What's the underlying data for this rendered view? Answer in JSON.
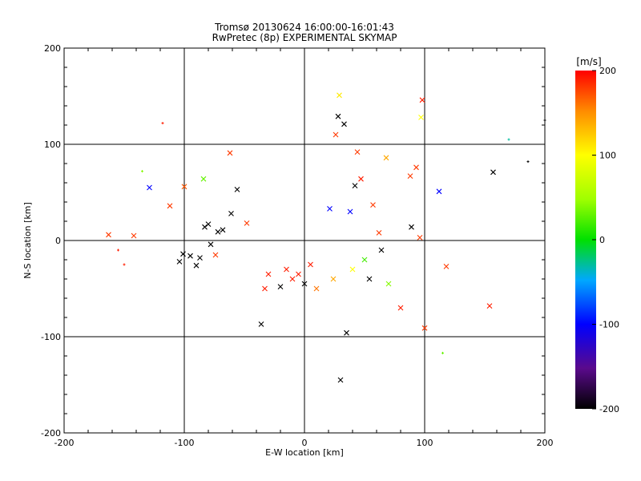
{
  "chart_data": {
    "type": "scatter",
    "title": "Tromsø 20130624 16:00:00-16:01:43",
    "subtitle": "RwPretec (8p) EXPERIMENTAL SKYMAP",
    "xlabel": "E-W location [km]",
    "ylabel": "N-S location [km]",
    "xlim": [
      -200,
      200
    ],
    "ylim": [
      -200,
      200
    ],
    "xticks": [
      "-200",
      "-100",
      "0",
      "100",
      "200"
    ],
    "yticks": [
      "-200",
      "-100",
      "0",
      "100",
      "200"
    ],
    "grid_lines": [
      -100,
      0,
      100
    ],
    "colorbar": {
      "label": "[m/s]",
      "min": -200,
      "max": 200,
      "ticks": [
        "200",
        "100",
        "0",
        "-100",
        "-200"
      ]
    },
    "markers": [
      {
        "x": -163,
        "y": 6,
        "v": 180,
        "m": "x"
      },
      {
        "x": -142,
        "y": 5,
        "v": 180,
        "m": "x"
      },
      {
        "x": -129,
        "y": 55,
        "v": -100,
        "m": "x"
      },
      {
        "x": -118,
        "y": 122,
        "v": 190,
        "m": "+"
      },
      {
        "x": -112,
        "y": 36,
        "v": 180,
        "m": "x"
      },
      {
        "x": -100,
        "y": 56,
        "v": 170,
        "m": "x"
      },
      {
        "x": -104,
        "y": -22,
        "v": -200,
        "m": "x"
      },
      {
        "x": -101,
        "y": -14,
        "v": -200,
        "m": "x"
      },
      {
        "x": -95,
        "y": -16,
        "v": -200,
        "m": "x"
      },
      {
        "x": -90,
        "y": -26,
        "v": -200,
        "m": "x"
      },
      {
        "x": -87,
        "y": -18,
        "v": -200,
        "m": "x"
      },
      {
        "x": -84,
        "y": 64,
        "v": 30,
        "m": "x"
      },
      {
        "x": -83,
        "y": 14,
        "v": -200,
        "m": "x"
      },
      {
        "x": -80,
        "y": 17,
        "v": -200,
        "m": "x"
      },
      {
        "x": -78,
        "y": -4,
        "v": -200,
        "m": "x"
      },
      {
        "x": -74,
        "y": -15,
        "v": 180,
        "m": "x"
      },
      {
        "x": -72,
        "y": 9,
        "v": -200,
        "m": "x"
      },
      {
        "x": -68,
        "y": 11,
        "v": -200,
        "m": "x"
      },
      {
        "x": -62,
        "y": 91,
        "v": 180,
        "m": "x"
      },
      {
        "x": -61,
        "y": 28,
        "v": -200,
        "m": "x"
      },
      {
        "x": -56,
        "y": 53,
        "v": -200,
        "m": "x"
      },
      {
        "x": -48,
        "y": 18,
        "v": 180,
        "m": "x"
      },
      {
        "x": -36,
        "y": -87,
        "v": -200,
        "m": "x"
      },
      {
        "x": -33,
        "y": -50,
        "v": 190,
        "m": "x"
      },
      {
        "x": -30,
        "y": -35,
        "v": 190,
        "m": "x"
      },
      {
        "x": -20,
        "y": -48,
        "v": -200,
        "m": "x"
      },
      {
        "x": -15,
        "y": -30,
        "v": 190,
        "m": "x"
      },
      {
        "x": -10,
        "y": -40,
        "v": 190,
        "m": "x"
      },
      {
        "x": -5,
        "y": -35,
        "v": 190,
        "m": "x"
      },
      {
        "x": 0,
        "y": -45,
        "v": -200,
        "m": "x"
      },
      {
        "x": 5,
        "y": -25,
        "v": 190,
        "m": "x"
      },
      {
        "x": 10,
        "y": -50,
        "v": 160,
        "m": "x"
      },
      {
        "x": 21,
        "y": 33,
        "v": -100,
        "m": "x"
      },
      {
        "x": 24,
        "y": -40,
        "v": 140,
        "m": "x"
      },
      {
        "x": 26,
        "y": 110,
        "v": 180,
        "m": "x"
      },
      {
        "x": 28,
        "y": 129,
        "v": -200,
        "m": "x"
      },
      {
        "x": 29,
        "y": 151,
        "v": 110,
        "m": "x"
      },
      {
        "x": 30,
        "y": -145,
        "v": -200,
        "m": "x"
      },
      {
        "x": 33,
        "y": 121,
        "v": -200,
        "m": "x"
      },
      {
        "x": 35,
        "y": -96,
        "v": -200,
        "m": "x"
      },
      {
        "x": 38,
        "y": 30,
        "v": -100,
        "m": "x"
      },
      {
        "x": 40,
        "y": -30,
        "v": 100,
        "m": "x"
      },
      {
        "x": 42,
        "y": 57,
        "v": -200,
        "m": "x"
      },
      {
        "x": 44,
        "y": 92,
        "v": 180,
        "m": "x"
      },
      {
        "x": 47,
        "y": 64,
        "v": 190,
        "m": "x"
      },
      {
        "x": 50,
        "y": -20,
        "v": 20,
        "m": "x"
      },
      {
        "x": 54,
        "y": -40,
        "v": -200,
        "m": "x"
      },
      {
        "x": 57,
        "y": 37,
        "v": 180,
        "m": "x"
      },
      {
        "x": 62,
        "y": 8,
        "v": 180,
        "m": "x"
      },
      {
        "x": 64,
        "y": -10,
        "v": -200,
        "m": "x"
      },
      {
        "x": 68,
        "y": 86,
        "v": 140,
        "m": "x"
      },
      {
        "x": 70,
        "y": -45,
        "v": 40,
        "m": "x"
      },
      {
        "x": 80,
        "y": -70,
        "v": 190,
        "m": "x"
      },
      {
        "x": 88,
        "y": 67,
        "v": 180,
        "m": "x"
      },
      {
        "x": 89,
        "y": 14,
        "v": -200,
        "m": "x"
      },
      {
        "x": 93,
        "y": 76,
        "v": 180,
        "m": "x"
      },
      {
        "x": 96,
        "y": 3,
        "v": 180,
        "m": "x"
      },
      {
        "x": 97,
        "y": 128,
        "v": 100,
        "m": "x"
      },
      {
        "x": 98,
        "y": 146,
        "v": 190,
        "m": "x"
      },
      {
        "x": 100,
        "y": -91,
        "v": 180,
        "m": "x"
      },
      {
        "x": 112,
        "y": 51,
        "v": -100,
        "m": "x"
      },
      {
        "x": 118,
        "y": -27,
        "v": 180,
        "m": "x"
      },
      {
        "x": 154,
        "y": -68,
        "v": 190,
        "m": "x"
      },
      {
        "x": 157,
        "y": 71,
        "v": -200,
        "m": "x"
      },
      {
        "x": 170,
        "y": 105,
        "v": -30,
        "m": "+"
      },
      {
        "x": 186,
        "y": 82,
        "v": -200,
        "m": "+"
      },
      {
        "x": 200,
        "y": 125,
        "v": -200,
        "m": "+"
      },
      {
        "x": 115,
        "y": -117,
        "v": 30,
        "m": "+"
      },
      {
        "x": -135,
        "y": 72,
        "v": 40,
        "m": "+"
      },
      {
        "x": -155,
        "y": -10,
        "v": 190,
        "m": "+"
      },
      {
        "x": -150,
        "y": -25,
        "v": 190,
        "m": "+"
      }
    ]
  }
}
